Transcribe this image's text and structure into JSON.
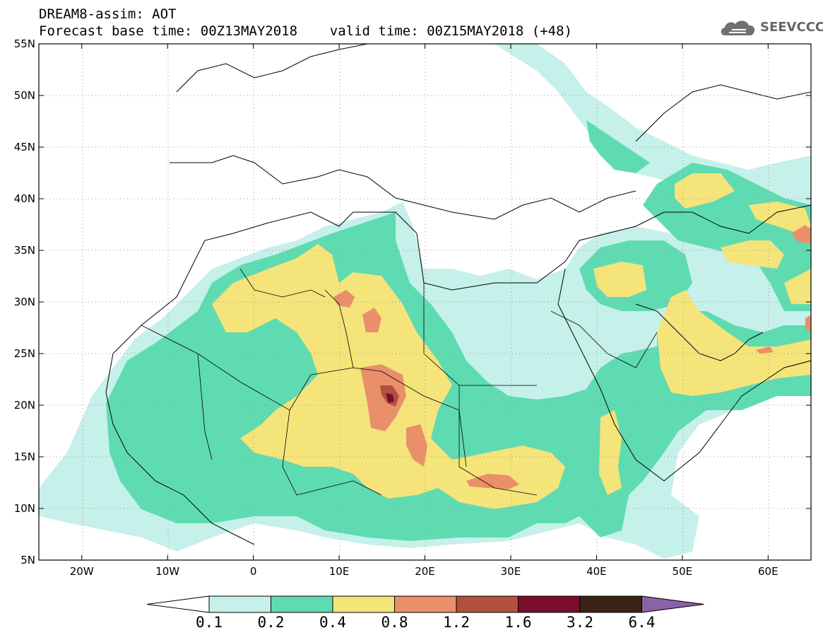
{
  "header": {
    "title_line1": "DREAM8-assim: AOT",
    "title_line2": "Forecast base time: 00Z13MAY2018    valid time: 00Z15MAY2018 (+48)"
  },
  "logo": {
    "text": "SEEVCCC",
    "icon": "cloud-icon"
  },
  "map": {
    "lon_range": [
      -25,
      65
    ],
    "lat_range": [
      5,
      55
    ],
    "x_ticks": [
      "20W",
      "10W",
      "0",
      "10E",
      "20E",
      "30E",
      "40E",
      "50E",
      "60E"
    ],
    "x_tick_values": [
      -20,
      -10,
      0,
      10,
      20,
      30,
      40,
      50,
      60
    ],
    "y_ticks": [
      "5N",
      "10N",
      "15N",
      "20N",
      "25N",
      "30N",
      "35N",
      "40N",
      "45N",
      "50N",
      "55N"
    ],
    "y_tick_values": [
      5,
      10,
      15,
      20,
      25,
      30,
      35,
      40,
      45,
      50,
      55
    ],
    "grid": "dotted"
  },
  "colorbar": {
    "labels": [
      "0.1",
      "0.2",
      "0.4",
      "0.8",
      "1.2",
      "1.6",
      "3.2",
      "6.4"
    ],
    "colors": [
      "#c6f0ea",
      "#5fdbb2",
      "#f5e47a",
      "#e9906a",
      "#b2503e",
      "#7a0c2c",
      "#3b2416",
      "#8a62a8"
    ],
    "low_extend_color": "#ffffff"
  }
}
